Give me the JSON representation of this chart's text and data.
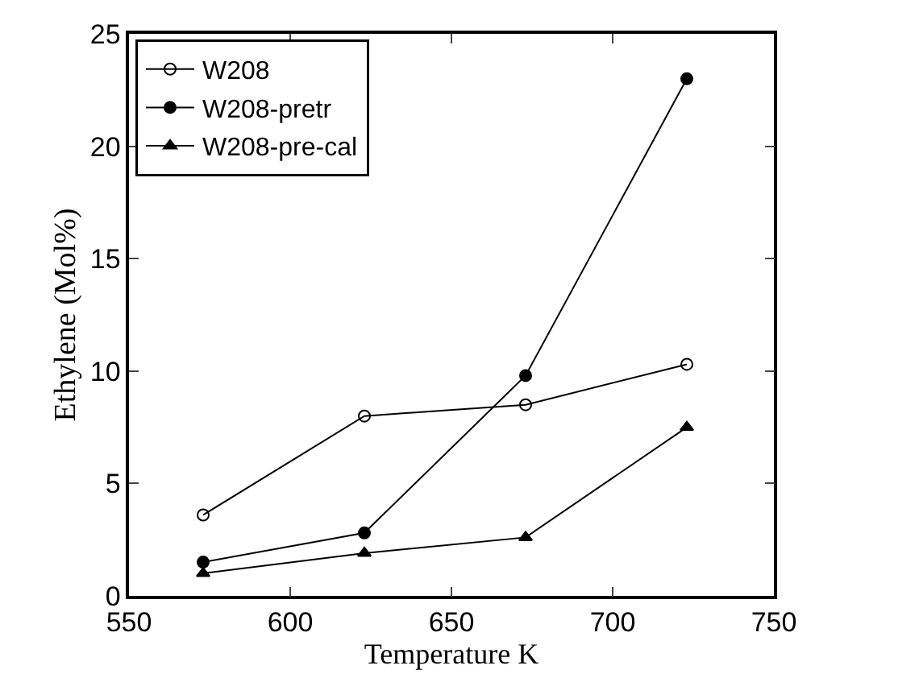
{
  "chart_data": {
    "type": "line",
    "xlabel": "Temperature K",
    "ylabel": "Ethylene (Mol%)",
    "x": [
      573,
      623,
      673,
      723
    ],
    "series": [
      {
        "name": "W208",
        "color": "#000000",
        "marker": "circle-open",
        "values": [
          3.6,
          8.0,
          8.5,
          10.3
        ]
      },
      {
        "name": "W208-pretr",
        "color": "#000000",
        "marker": "circle",
        "values": [
          1.5,
          2.8,
          9.8,
          23.0
        ]
      },
      {
        "name": "W208-pre-cal",
        "color": "#000000",
        "marker": "triangle",
        "values": [
          1.0,
          1.9,
          2.6,
          7.5
        ]
      }
    ],
    "xlim": [
      550,
      750
    ],
    "xticks": [
      550,
      600,
      650,
      700,
      750
    ],
    "ylim": [
      0,
      25
    ],
    "yticks": [
      0,
      5,
      10,
      15,
      20,
      25
    ],
    "legend": "top left",
    "line_style": "solid"
  }
}
